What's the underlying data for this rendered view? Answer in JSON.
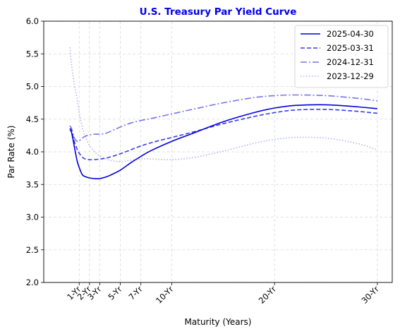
{
  "chart_data": {
    "type": "line",
    "title": "U.S. Treasury Par Yield Curve",
    "title_color": "#0000ee",
    "xlabel": "Maturity (Years)",
    "ylabel": "Par Rate (%)",
    "xlim": [
      -2.45,
      31.45
    ],
    "ylim": [
      2.0,
      6.0
    ],
    "yticks": [
      2.0,
      2.5,
      3.0,
      3.5,
      4.0,
      4.5,
      5.0,
      5.5,
      6.0
    ],
    "ytick_labels": [
      "2.0",
      "2.5",
      "3.0",
      "3.5",
      "4.0",
      "4.5",
      "5.0",
      "5.5",
      "6.0"
    ],
    "xticks": [
      1,
      2,
      3,
      5,
      7,
      10,
      20,
      30
    ],
    "xtick_labels": [
      "1-Yr",
      "2-Yr",
      "3-Yr",
      "5-Yr",
      "7-Yr",
      "10-Yr",
      "20-Yr",
      "30-Yr"
    ],
    "grid": true,
    "legend_position": "top-right",
    "series": [
      {
        "name": "2025-04-30",
        "color": "#0000dd",
        "dash": "solid",
        "x": [
          0.08,
          0.25,
          0.5,
          0.8,
          1,
          1.3,
          1.6,
          2,
          2.5,
          3,
          3.5,
          4,
          5,
          6,
          7,
          8,
          10,
          12,
          15,
          18,
          20,
          22,
          25,
          28,
          30
        ],
        "y": [
          4.34,
          4.3,
          4.1,
          3.86,
          3.76,
          3.65,
          3.62,
          3.6,
          3.59,
          3.59,
          3.61,
          3.64,
          3.72,
          3.83,
          3.93,
          4.02,
          4.16,
          4.28,
          4.46,
          4.6,
          4.67,
          4.71,
          4.72,
          4.69,
          4.66
        ]
      },
      {
        "name": "2025-03-31",
        "color": "#3b3be8",
        "dash": "dashed",
        "x": [
          0.08,
          0.25,
          0.5,
          0.8,
          1,
          1.3,
          1.6,
          2,
          2.5,
          3,
          3.5,
          4,
          5,
          6,
          7,
          8,
          10,
          12,
          15,
          18,
          20,
          22,
          25,
          28,
          30
        ],
        "y": [
          4.36,
          4.33,
          4.17,
          4.04,
          3.98,
          3.92,
          3.89,
          3.88,
          3.88,
          3.89,
          3.9,
          3.92,
          3.97,
          4.03,
          4.09,
          4.14,
          4.22,
          4.3,
          4.43,
          4.54,
          4.6,
          4.64,
          4.65,
          4.62,
          4.59
        ]
      },
      {
        "name": "2024-12-31",
        "color": "#7575ee",
        "dash": "dashdot",
        "x": [
          0.08,
          0.25,
          0.5,
          0.8,
          1,
          1.3,
          1.6,
          2,
          2.5,
          3,
          3.5,
          4,
          5,
          6,
          7,
          8,
          10,
          12,
          15,
          18,
          20,
          22,
          25,
          28,
          30
        ],
        "y": [
          4.4,
          4.36,
          4.22,
          4.16,
          4.17,
          4.21,
          4.24,
          4.26,
          4.27,
          4.27,
          4.28,
          4.31,
          4.38,
          4.44,
          4.48,
          4.51,
          4.58,
          4.65,
          4.75,
          4.83,
          4.86,
          4.87,
          4.86,
          4.82,
          4.78
        ]
      },
      {
        "name": "2023-12-29",
        "color": "#b2b2f5",
        "dash": "dotted",
        "x": [
          0.08,
          0.25,
          0.5,
          0.8,
          1,
          1.3,
          1.6,
          2,
          2.5,
          3,
          3.5,
          4,
          5,
          6,
          7,
          8,
          10,
          12,
          15,
          18,
          20,
          22,
          25,
          28,
          30
        ],
        "y": [
          5.6,
          5.35,
          5.05,
          4.8,
          4.6,
          4.38,
          4.24,
          4.1,
          4.0,
          3.94,
          3.9,
          3.87,
          3.85,
          3.87,
          3.89,
          3.89,
          3.88,
          3.91,
          4.01,
          4.13,
          4.19,
          4.22,
          4.21,
          4.13,
          4.03
        ]
      }
    ]
  }
}
